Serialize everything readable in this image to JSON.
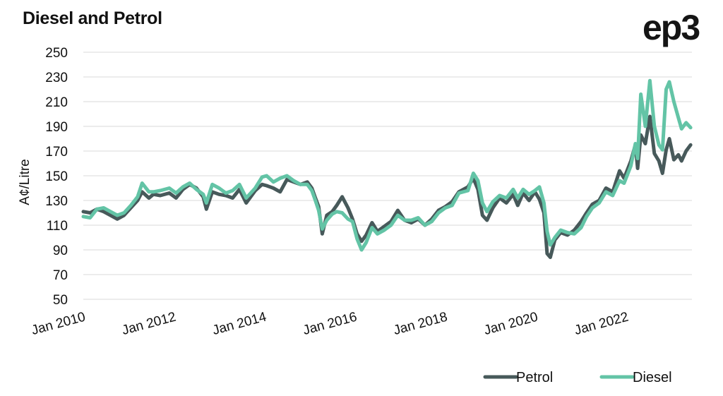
{
  "title": "Diesel and Petrol",
  "logo_text": "ep3",
  "chart_data": {
    "type": "line",
    "title": "Diesel and Petrol",
    "xlabel": "",
    "ylabel": "A¢/Litre",
    "ylim": [
      50,
      250
    ],
    "yticks": [
      50,
      70,
      90,
      110,
      130,
      150,
      170,
      190,
      210,
      230,
      250
    ],
    "xlim": [
      2010.0,
      2023.45
    ],
    "xticks": [
      {
        "label": "Jan 2010",
        "x": 2010
      },
      {
        "label": "Jan 2012",
        "x": 2012
      },
      {
        "label": "Jan 2014",
        "x": 2014
      },
      {
        "label": "Jan 2016",
        "x": 2016
      },
      {
        "label": "Jan 2018",
        "x": 2018
      },
      {
        "label": "Jan 2020",
        "x": 2020
      },
      {
        "label": "Jan 2022",
        "x": 2022
      }
    ],
    "grid": "horizontal",
    "legend": "bottom-right",
    "series": [
      {
        "name": "Petrol",
        "color": "#47595a",
        "points": [
          [
            2010.0,
            121
          ],
          [
            2010.15,
            120
          ],
          [
            2010.3,
            123
          ],
          [
            2010.45,
            121
          ],
          [
            2010.6,
            118
          ],
          [
            2010.75,
            115
          ],
          [
            2010.9,
            118
          ],
          [
            2011.05,
            124
          ],
          [
            2011.2,
            130
          ],
          [
            2011.3,
            137
          ],
          [
            2011.45,
            132
          ],
          [
            2011.55,
            135
          ],
          [
            2011.7,
            134
          ],
          [
            2011.9,
            136
          ],
          [
            2012.05,
            132
          ],
          [
            2012.2,
            139
          ],
          [
            2012.35,
            143
          ],
          [
            2012.5,
            140
          ],
          [
            2012.65,
            133
          ],
          [
            2012.72,
            123
          ],
          [
            2012.85,
            137
          ],
          [
            2013.0,
            135
          ],
          [
            2013.15,
            134
          ],
          [
            2013.3,
            132
          ],
          [
            2013.45,
            139
          ],
          [
            2013.6,
            128
          ],
          [
            2013.8,
            138
          ],
          [
            2013.95,
            143
          ],
          [
            2014.05,
            142
          ],
          [
            2014.2,
            140
          ],
          [
            2014.35,
            137
          ],
          [
            2014.5,
            147
          ],
          [
            2014.65,
            145
          ],
          [
            2014.8,
            143
          ],
          [
            2014.95,
            145
          ],
          [
            2015.05,
            140
          ],
          [
            2015.12,
            133
          ],
          [
            2015.2,
            125
          ],
          [
            2015.28,
            103
          ],
          [
            2015.38,
            118
          ],
          [
            2015.5,
            121
          ],
          [
            2015.6,
            126
          ],
          [
            2015.72,
            133
          ],
          [
            2015.85,
            124
          ],
          [
            2015.95,
            115
          ],
          [
            2016.05,
            103
          ],
          [
            2016.15,
            97
          ],
          [
            2016.25,
            102
          ],
          [
            2016.38,
            112
          ],
          [
            2016.5,
            105
          ],
          [
            2016.65,
            109
          ],
          [
            2016.8,
            113
          ],
          [
            2016.95,
            122
          ],
          [
            2017.1,
            114
          ],
          [
            2017.25,
            112
          ],
          [
            2017.4,
            115
          ],
          [
            2017.55,
            110
          ],
          [
            2017.7,
            115
          ],
          [
            2017.85,
            122
          ],
          [
            2018.0,
            125
          ],
          [
            2018.15,
            129
          ],
          [
            2018.3,
            137
          ],
          [
            2018.5,
            141
          ],
          [
            2018.62,
            148
          ],
          [
            2018.72,
            139
          ],
          [
            2018.82,
            118
          ],
          [
            2018.92,
            114
          ],
          [
            2019.05,
            124
          ],
          [
            2019.2,
            132
          ],
          [
            2019.35,
            128
          ],
          [
            2019.5,
            135
          ],
          [
            2019.6,
            126
          ],
          [
            2019.72,
            136
          ],
          [
            2019.85,
            130
          ],
          [
            2019.98,
            137
          ],
          [
            2020.08,
            131
          ],
          [
            2020.18,
            120
          ],
          [
            2020.25,
            87
          ],
          [
            2020.32,
            84
          ],
          [
            2020.42,
            98
          ],
          [
            2020.55,
            104
          ],
          [
            2020.7,
            102
          ],
          [
            2020.85,
            106
          ],
          [
            2021.0,
            113
          ],
          [
            2021.12,
            120
          ],
          [
            2021.25,
            127
          ],
          [
            2021.4,
            130
          ],
          [
            2021.55,
            140
          ],
          [
            2021.7,
            137
          ],
          [
            2021.85,
            154
          ],
          [
            2021.95,
            148
          ],
          [
            2022.1,
            162
          ],
          [
            2022.2,
            175
          ],
          [
            2022.25,
            156
          ],
          [
            2022.32,
            183
          ],
          [
            2022.42,
            176
          ],
          [
            2022.52,
            198
          ],
          [
            2022.62,
            168
          ],
          [
            2022.72,
            162
          ],
          [
            2022.8,
            152
          ],
          [
            2022.88,
            171
          ],
          [
            2022.95,
            180
          ],
          [
            2023.05,
            163
          ],
          [
            2023.15,
            167
          ],
          [
            2023.22,
            162
          ],
          [
            2023.32,
            170
          ],
          [
            2023.42,
            175
          ]
        ]
      },
      {
        "name": "Diesel",
        "color": "#63c4a6",
        "points": [
          [
            2010.0,
            117
          ],
          [
            2010.15,
            116
          ],
          [
            2010.3,
            123
          ],
          [
            2010.45,
            124
          ],
          [
            2010.6,
            121
          ],
          [
            2010.75,
            118
          ],
          [
            2010.9,
            120
          ],
          [
            2011.05,
            126
          ],
          [
            2011.2,
            133
          ],
          [
            2011.3,
            144
          ],
          [
            2011.45,
            137
          ],
          [
            2011.55,
            137
          ],
          [
            2011.7,
            138
          ],
          [
            2011.9,
            140
          ],
          [
            2012.05,
            136
          ],
          [
            2012.2,
            141
          ],
          [
            2012.35,
            144
          ],
          [
            2012.5,
            139
          ],
          [
            2012.65,
            135
          ],
          [
            2012.72,
            128
          ],
          [
            2012.85,
            143
          ],
          [
            2013.0,
            140
          ],
          [
            2013.15,
            136
          ],
          [
            2013.3,
            138
          ],
          [
            2013.45,
            143
          ],
          [
            2013.6,
            132
          ],
          [
            2013.8,
            140
          ],
          [
            2013.95,
            149
          ],
          [
            2014.05,
            150
          ],
          [
            2014.2,
            145
          ],
          [
            2014.35,
            148
          ],
          [
            2014.5,
            150
          ],
          [
            2014.65,
            146
          ],
          [
            2014.8,
            143
          ],
          [
            2014.95,
            143
          ],
          [
            2015.05,
            138
          ],
          [
            2015.12,
            131
          ],
          [
            2015.2,
            122
          ],
          [
            2015.28,
            107
          ],
          [
            2015.38,
            114
          ],
          [
            2015.5,
            119
          ],
          [
            2015.6,
            121
          ],
          [
            2015.72,
            120
          ],
          [
            2015.85,
            115
          ],
          [
            2015.95,
            113
          ],
          [
            2016.05,
            99
          ],
          [
            2016.15,
            90
          ],
          [
            2016.25,
            96
          ],
          [
            2016.38,
            108
          ],
          [
            2016.5,
            103
          ],
          [
            2016.65,
            106
          ],
          [
            2016.8,
            110
          ],
          [
            2016.95,
            118
          ],
          [
            2017.1,
            114
          ],
          [
            2017.25,
            114
          ],
          [
            2017.4,
            116
          ],
          [
            2017.55,
            110
          ],
          [
            2017.7,
            113
          ],
          [
            2017.85,
            120
          ],
          [
            2018.0,
            124
          ],
          [
            2018.15,
            126
          ],
          [
            2018.3,
            136
          ],
          [
            2018.5,
            138
          ],
          [
            2018.62,
            152
          ],
          [
            2018.72,
            146
          ],
          [
            2018.82,
            128
          ],
          [
            2018.92,
            121
          ],
          [
            2019.05,
            129
          ],
          [
            2019.2,
            134
          ],
          [
            2019.35,
            132
          ],
          [
            2019.5,
            139
          ],
          [
            2019.6,
            132
          ],
          [
            2019.72,
            139
          ],
          [
            2019.85,
            135
          ],
          [
            2019.98,
            138
          ],
          [
            2020.08,
            141
          ],
          [
            2020.18,
            128
          ],
          [
            2020.25,
            105
          ],
          [
            2020.32,
            94
          ],
          [
            2020.42,
            100
          ],
          [
            2020.55,
            106
          ],
          [
            2020.7,
            104
          ],
          [
            2020.85,
            103
          ],
          [
            2021.0,
            108
          ],
          [
            2021.12,
            117
          ],
          [
            2021.25,
            124
          ],
          [
            2021.4,
            128
          ],
          [
            2021.55,
            137
          ],
          [
            2021.7,
            134
          ],
          [
            2021.85,
            146
          ],
          [
            2021.95,
            144
          ],
          [
            2022.1,
            158
          ],
          [
            2022.2,
            176
          ],
          [
            2022.25,
            164
          ],
          [
            2022.32,
            216
          ],
          [
            2022.42,
            190
          ],
          [
            2022.52,
            227
          ],
          [
            2022.62,
            190
          ],
          [
            2022.72,
            175
          ],
          [
            2022.8,
            171
          ],
          [
            2022.88,
            220
          ],
          [
            2022.95,
            226
          ],
          [
            2023.05,
            210
          ],
          [
            2023.15,
            197
          ],
          [
            2023.22,
            188
          ],
          [
            2023.32,
            193
          ],
          [
            2023.42,
            189
          ]
        ]
      }
    ]
  }
}
